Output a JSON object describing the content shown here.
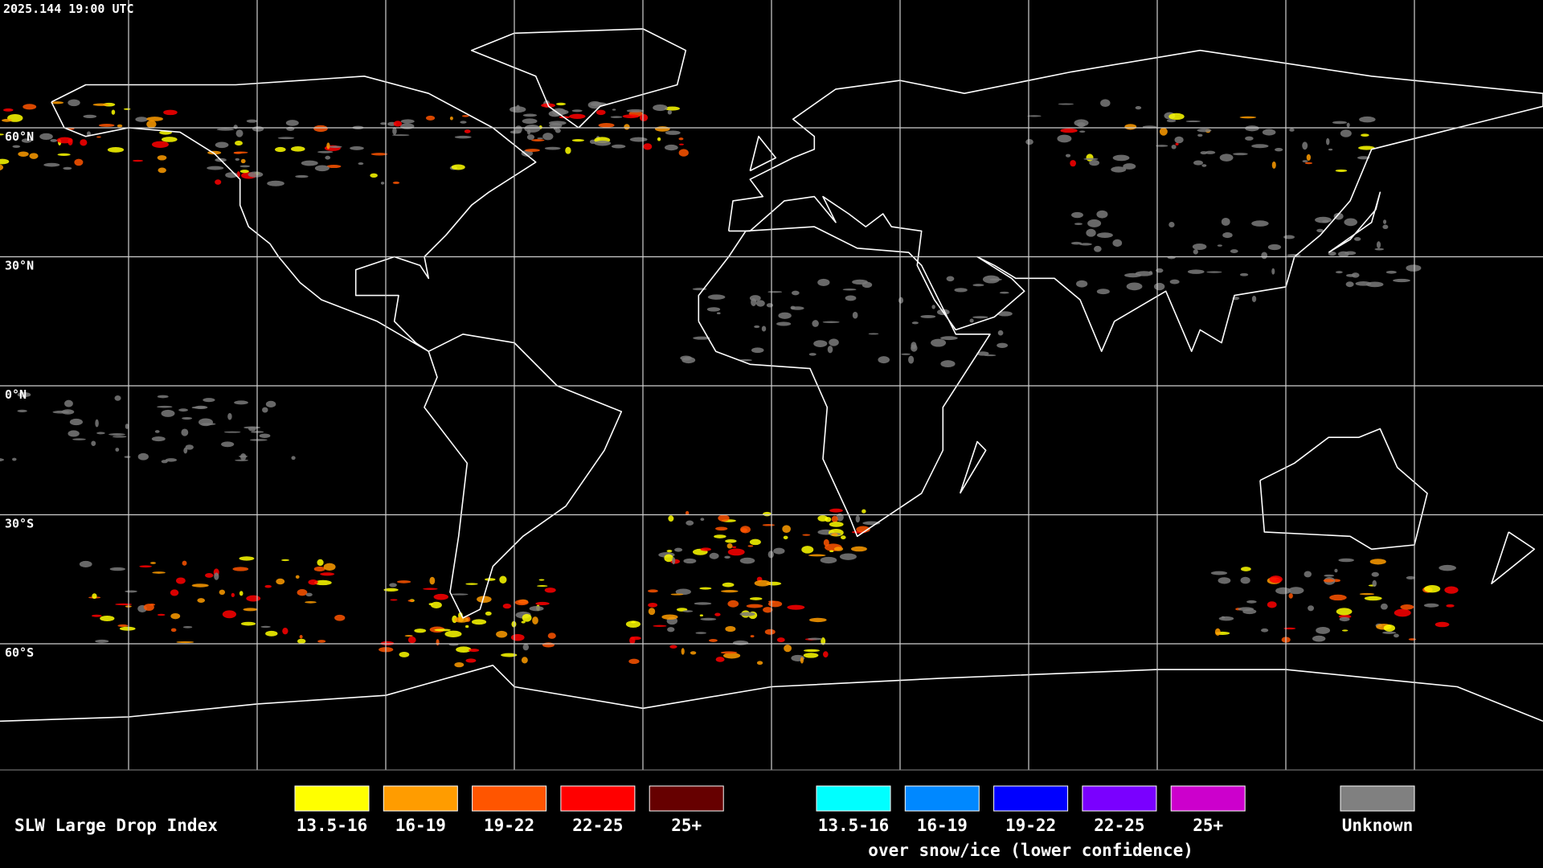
{
  "header": {
    "timestamp": "2025.144 19:00 UTC"
  },
  "map": {
    "latitude_labels": [
      "60°N",
      "30°N",
      "0°N",
      "30°S",
      "60°S"
    ]
  },
  "legend": {
    "title": "SLW Large Drop Index",
    "groups": [
      {
        "items": [
          {
            "label": "13.5-16",
            "color": "#ffff00"
          },
          {
            "label": "16-19",
            "color": "#ff9c00"
          },
          {
            "label": "19-22",
            "color": "#ff5500"
          },
          {
            "label": "22-25",
            "color": "#ff0000"
          },
          {
            "label": "25+",
            "color": "#660000"
          }
        ]
      },
      {
        "items": [
          {
            "label": "13.5-16",
            "color": "#00ffff"
          },
          {
            "label": "16-19",
            "color": "#0088ff"
          },
          {
            "label": "19-22",
            "color": "#0000ff"
          },
          {
            "label": "22-25",
            "color": "#7a00ff"
          },
          {
            "label": "25+",
            "color": "#cc00cc"
          }
        ],
        "caption": "over snow/ice (lower confidence)"
      },
      {
        "items": [
          {
            "label": "Unknown",
            "color": "#808080"
          }
        ]
      }
    ]
  }
}
